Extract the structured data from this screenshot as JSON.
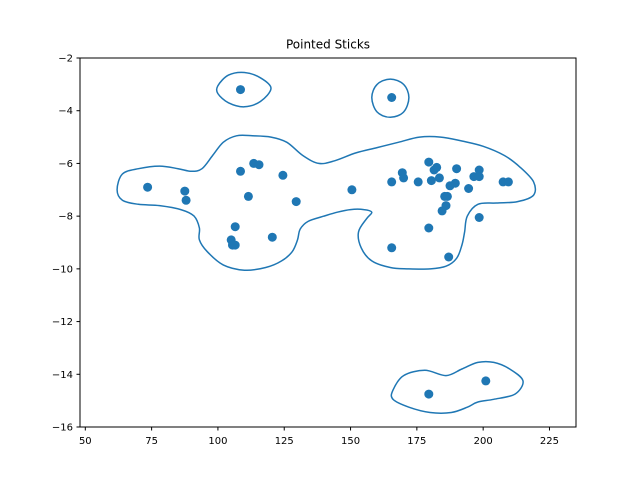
{
  "chart_data": {
    "type": "scatter",
    "title": "Pointed Sticks",
    "xlabel": "",
    "ylabel": "",
    "xlim": [
      48,
      235
    ],
    "ylim": [
      -16,
      -2
    ],
    "xticks": [
      50,
      75,
      100,
      125,
      150,
      175,
      200,
      225
    ],
    "yticks": [
      -2,
      -4,
      -6,
      -8,
      -10,
      -12,
      -14,
      -16
    ],
    "grid": false,
    "color": "#1f77b4",
    "points": [
      [
        73.5,
        -6.9
      ],
      [
        87.5,
        -7.05
      ],
      [
        88.0,
        -7.4
      ],
      [
        105.0,
        -8.9
      ],
      [
        105.5,
        -9.1
      ],
      [
        106.5,
        -8.4
      ],
      [
        106.5,
        -9.1
      ],
      [
        108.5,
        -6.3
      ],
      [
        108.5,
        -3.2
      ],
      [
        111.5,
        -7.25
      ],
      [
        113.5,
        -6.0
      ],
      [
        115.5,
        -6.05
      ],
      [
        120.5,
        -8.8
      ],
      [
        124.5,
        -6.45
      ],
      [
        129.5,
        -7.45
      ],
      [
        150.5,
        -7.0
      ],
      [
        165.5,
        -3.5
      ],
      [
        165.5,
        -6.7
      ],
      [
        165.5,
        -9.2
      ],
      [
        169.5,
        -6.35
      ],
      [
        170.0,
        -6.55
      ],
      [
        175.5,
        -6.7
      ],
      [
        179.5,
        -5.95
      ],
      [
        179.5,
        -8.45
      ],
      [
        180.5,
        -6.65
      ],
      [
        181.5,
        -6.25
      ],
      [
        182.5,
        -6.15
      ],
      [
        183.5,
        -6.55
      ],
      [
        184.5,
        -7.8
      ],
      [
        185.5,
        -7.25
      ],
      [
        186.0,
        -7.6
      ],
      [
        186.5,
        -7.25
      ],
      [
        187.5,
        -6.85
      ],
      [
        187.0,
        -9.55
      ],
      [
        189.5,
        -6.75
      ],
      [
        190.0,
        -6.2
      ],
      [
        194.5,
        -6.95
      ],
      [
        196.5,
        -6.5
      ],
      [
        198.5,
        -6.25
      ],
      [
        198.5,
        -6.5
      ],
      [
        198.5,
        -8.05
      ],
      [
        207.5,
        -6.7
      ],
      [
        209.5,
        -6.7
      ],
      [
        179.5,
        -14.75
      ],
      [
        201.0,
        -14.25
      ]
    ],
    "contours": [
      [
        [
          100,
          -3.05
        ],
        [
          104,
          -2.65
        ],
        [
          110,
          -2.55
        ],
        [
          116,
          -2.75
        ],
        [
          120,
          -3.15
        ],
        [
          116,
          -3.65
        ],
        [
          110,
          -3.85
        ],
        [
          104,
          -3.7
        ],
        [
          100,
          -3.35
        ]
      ],
      [
        [
          158,
          -3.5
        ],
        [
          160,
          -3.0
        ],
        [
          165,
          -2.8
        ],
        [
          170,
          -3.0
        ],
        [
          172,
          -3.5
        ],
        [
          170,
          -4.05
        ],
        [
          165,
          -4.25
        ],
        [
          160,
          -4.05
        ]
      ],
      [
        [
          62,
          -7.0
        ],
        [
          64,
          -6.4
        ],
        [
          70,
          -6.2
        ],
        [
          78,
          -6.1
        ],
        [
          85,
          -6.2
        ],
        [
          90,
          -6.3
        ],
        [
          94,
          -6.2
        ],
        [
          98,
          -5.7
        ],
        [
          102,
          -5.2
        ],
        [
          107,
          -4.95
        ],
        [
          113,
          -4.95
        ],
        [
          120,
          -5.0
        ],
        [
          126,
          -5.2
        ],
        [
          132,
          -5.7
        ],
        [
          138,
          -6.0
        ],
        [
          144,
          -5.9
        ],
        [
          152,
          -5.6
        ],
        [
          160,
          -5.4
        ],
        [
          168,
          -5.2
        ],
        [
          176,
          -5.0
        ],
        [
          184,
          -5.0
        ],
        [
          192,
          -5.15
        ],
        [
          200,
          -5.35
        ],
        [
          208,
          -5.7
        ],
        [
          214,
          -6.15
        ],
        [
          219,
          -6.7
        ],
        [
          219,
          -7.2
        ],
        [
          213,
          -7.45
        ],
        [
          205,
          -7.5
        ],
        [
          198,
          -7.55
        ],
        [
          194,
          -8.0
        ],
        [
          193,
          -8.6
        ],
        [
          192,
          -9.1
        ],
        [
          190,
          -9.6
        ],
        [
          186,
          -9.9
        ],
        [
          180,
          -10.0
        ],
        [
          172,
          -10.0
        ],
        [
          165,
          -9.95
        ],
        [
          158,
          -9.7
        ],
        [
          154,
          -9.2
        ],
        [
          153,
          -8.6
        ],
        [
          156,
          -8.1
        ],
        [
          158,
          -7.85
        ],
        [
          155,
          -7.75
        ],
        [
          150,
          -7.75
        ],
        [
          145,
          -7.85
        ],
        [
          140,
          -8.0
        ],
        [
          134,
          -8.2
        ],
        [
          131,
          -8.5
        ],
        [
          130,
          -8.9
        ],
        [
          128,
          -9.35
        ],
        [
          124,
          -9.7
        ],
        [
          118,
          -9.95
        ],
        [
          110,
          -10.05
        ],
        [
          102,
          -9.85
        ],
        [
          96,
          -9.35
        ],
        [
          93,
          -8.9
        ],
        [
          93,
          -8.45
        ],
        [
          91,
          -8.0
        ],
        [
          86,
          -7.75
        ],
        [
          78,
          -7.6
        ],
        [
          70,
          -7.55
        ],
        [
          64,
          -7.4
        ]
      ],
      [
        [
          166,
          -14.6
        ],
        [
          170,
          -14.05
        ],
        [
          178,
          -13.85
        ],
        [
          186,
          -14.05
        ],
        [
          192,
          -13.8
        ],
        [
          198,
          -13.55
        ],
        [
          204,
          -13.55
        ],
        [
          210,
          -13.8
        ],
        [
          215,
          -14.25
        ],
        [
          212,
          -14.75
        ],
        [
          204,
          -14.95
        ],
        [
          198,
          -15.05
        ],
        [
          194,
          -15.25
        ],
        [
          188,
          -15.45
        ],
        [
          180,
          -15.45
        ],
        [
          172,
          -15.25
        ],
        [
          166,
          -14.95
        ]
      ]
    ]
  }
}
